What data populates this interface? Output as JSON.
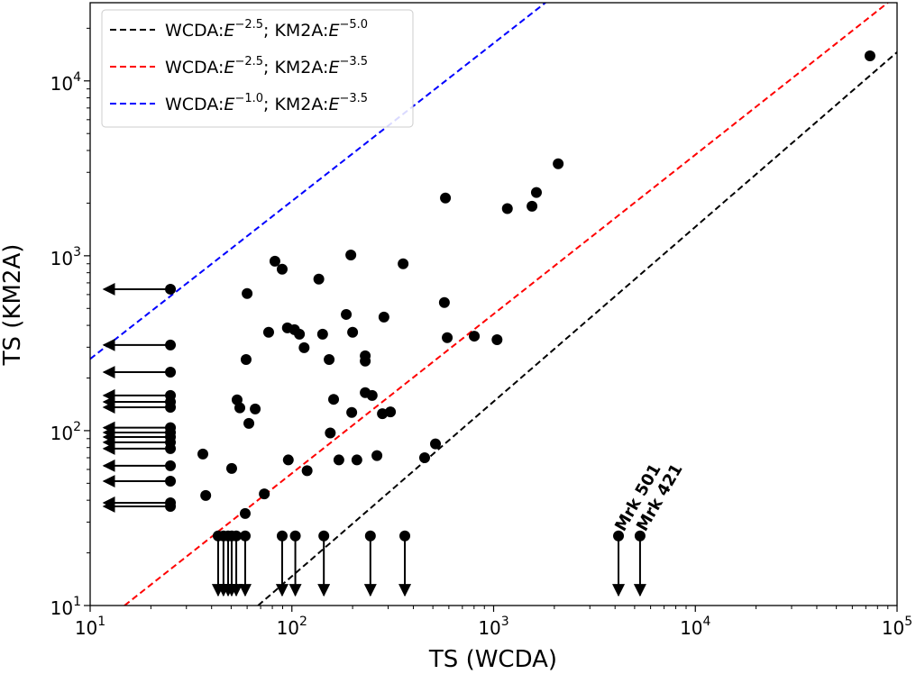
{
  "chart_data": {
    "type": "scatter",
    "xlabel": "TS (WCDA)",
    "ylabel": "TS (KM2A)",
    "xscale": "log",
    "yscale": "log",
    "xlim": [
      10,
      100000
    ],
    "ylim": [
      10,
      28000
    ],
    "xticks": [
      {
        "value": 10,
        "label": [
          "10",
          "1"
        ]
      },
      {
        "value": 100,
        "label": [
          "10",
          "2"
        ]
      },
      {
        "value": 1000,
        "label": [
          "10",
          "3"
        ]
      },
      {
        "value": 10000,
        "label": [
          "10",
          "4"
        ]
      },
      {
        "value": 100000,
        "label": [
          "10",
          "5"
        ]
      }
    ],
    "yticks": [
      {
        "value": 10,
        "label": [
          "10",
          "1"
        ]
      },
      {
        "value": 100,
        "label": [
          "10",
          "2"
        ]
      },
      {
        "value": 1000,
        "label": [
          "10",
          "3"
        ]
      },
      {
        "value": 10000,
        "label": [
          "10",
          "4"
        ]
      }
    ],
    "legend": "upper left",
    "lines": [
      {
        "name": [
          "WCDA:",
          "E",
          "−2.5",
          "; KM2A:",
          "E",
          "−5.0"
        ],
        "color": "#000000",
        "style": "dashed",
        "x": [
          68,
          100000
        ],
        "y": [
          10,
          14600
        ]
      },
      {
        "name": [
          "WCDA:",
          "E",
          "−2.5",
          "; KM2A:",
          "E",
          "−3.5"
        ],
        "color": "#ff0000",
        "style": "dashed",
        "x": [
          14.8,
          90000
        ],
        "y": [
          10,
          28000
        ]
      },
      {
        "name": [
          "WCDA:",
          "E",
          "−1.0",
          "; KM2A:",
          "E",
          "−3.5"
        ],
        "color": "#0000ff",
        "style": "dashed",
        "x": [
          10,
          1807
        ],
        "y": [
          257,
          28000
        ]
      }
    ],
    "points": {
      "color": "#000000",
      "x": [
        73400,
        2090,
        1630,
        1550,
        1170,
        577,
        1040,
        802,
        589,
        570,
        515,
        455,
        308,
        281,
        356,
        286,
        264,
        250,
        231,
        231,
        231,
        210,
        196,
        198,
        200,
        186,
        171,
        161,
        155,
        153,
        142,
        136,
        119,
        115,
        109,
        103,
        95,
        96,
        89.5,
        82.4,
        76.7,
        73,
        65.8,
        61.2,
        58.7,
        60,
        59.3,
        55.2,
        53.5,
        50.3,
        36.2,
        37.4
      ],
      "y": [
        13900,
        3360,
        2300,
        1920,
        1860,
        2140,
        331,
        347,
        340,
        540,
        84,
        70,
        128,
        125,
        900,
        446,
        72,
        159,
        165,
        268,
        250,
        68,
        1010,
        127,
        365,
        462,
        68,
        151,
        97,
        255,
        356,
        735,
        59,
        298,
        356,
        378,
        387,
        68,
        838,
        931,
        365,
        43.5,
        133,
        110,
        33.6,
        608,
        255,
        135,
        150,
        60.8,
        73.5,
        42.6
      ]
    },
    "x_upper_limits": {
      "color": "#000000",
      "x": [
        25,
        25,
        25,
        25,
        25,
        25,
        25,
        25,
        25,
        25,
        25,
        25,
        25,
        25,
        25
      ],
      "y": [
        644,
        309,
        216,
        159,
        146,
        136,
        104,
        97.6,
        92,
        85.7,
        78.9,
        63,
        51.4,
        38.7,
        36.9
      ]
    },
    "y_upper_limits": {
      "color": "#000000",
      "x": [
        43.1,
        45.8,
        48.3,
        50.3,
        53,
        58.7,
        89.5,
        104,
        144,
        245,
        363,
        4160,
        5320
      ],
      "y": [
        25,
        25,
        25,
        25,
        25,
        25,
        25,
        25,
        25,
        25,
        25,
        25,
        25
      ]
    },
    "annotations": [
      {
        "text": "Mrk 501",
        "x": 4160,
        "y": 25,
        "color": "#ff0000"
      },
      {
        "text": "Mrk 421",
        "x": 5320,
        "y": 25,
        "color": "#ff0000"
      }
    ]
  }
}
